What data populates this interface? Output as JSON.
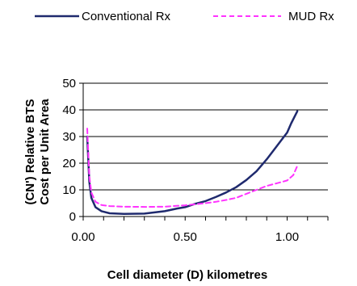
{
  "chart_data": {
    "type": "line",
    "xlabel": "Cell diameter (D) kilometres",
    "ylabel_lines": [
      "(CN') Relative BTS",
      "Cost per Unit Area"
    ],
    "xlim": [
      0,
      1.2
    ],
    "ylim": [
      0,
      50
    ],
    "x_ticks": [
      0.0,
      0.5,
      1.0
    ],
    "x_tick_labels": [
      "0.00",
      "0.50",
      "1.00"
    ],
    "y_ticks": [
      0,
      10,
      20,
      30,
      40,
      50
    ],
    "y_tick_labels": [
      "0",
      "10",
      "20",
      "30",
      "40",
      "50"
    ],
    "grid": "horizontal",
    "legend_position": "top",
    "series": [
      {
        "name": "Conventional Rx",
        "color": "#1f2a6e",
        "dash": "solid",
        "points": [
          [
            0.02,
            30
          ],
          [
            0.03,
            13
          ],
          [
            0.04,
            7
          ],
          [
            0.06,
            3.5
          ],
          [
            0.09,
            2
          ],
          [
            0.13,
            1.2
          ],
          [
            0.2,
            1.0
          ],
          [
            0.3,
            1.1
          ],
          [
            0.4,
            2.0
          ],
          [
            0.46,
            3.0
          ],
          [
            0.5,
            3.5
          ],
          [
            0.55,
            4.8
          ],
          [
            0.6,
            5.8
          ],
          [
            0.65,
            7.3
          ],
          [
            0.7,
            9.0
          ],
          [
            0.75,
            11.0
          ],
          [
            0.8,
            13.7
          ],
          [
            0.85,
            17.0
          ],
          [
            0.9,
            21.5
          ],
          [
            0.95,
            26.5
          ],
          [
            0.98,
            29.5
          ],
          [
            1.0,
            31.5
          ],
          [
            1.02,
            35.0
          ],
          [
            1.05,
            39.5
          ]
        ]
      },
      {
        "name": "MUD Rx",
        "color": "#ff33ff",
        "dash": "dashed",
        "points": [
          [
            0.02,
            33
          ],
          [
            0.03,
            15
          ],
          [
            0.04,
            9
          ],
          [
            0.06,
            5.5
          ],
          [
            0.09,
            4.3
          ],
          [
            0.13,
            3.9
          ],
          [
            0.2,
            3.7
          ],
          [
            0.3,
            3.6
          ],
          [
            0.4,
            3.7
          ],
          [
            0.5,
            4.2
          ],
          [
            0.6,
            5.0
          ],
          [
            0.65,
            5.5
          ],
          [
            0.7,
            6.2
          ],
          [
            0.75,
            7.0
          ],
          [
            0.8,
            8.5
          ],
          [
            0.85,
            10.0
          ],
          [
            0.9,
            11.5
          ],
          [
            0.95,
            12.5
          ],
          [
            1.0,
            13.5
          ],
          [
            1.03,
            15.5
          ],
          [
            1.05,
            19.0
          ]
        ]
      }
    ]
  }
}
